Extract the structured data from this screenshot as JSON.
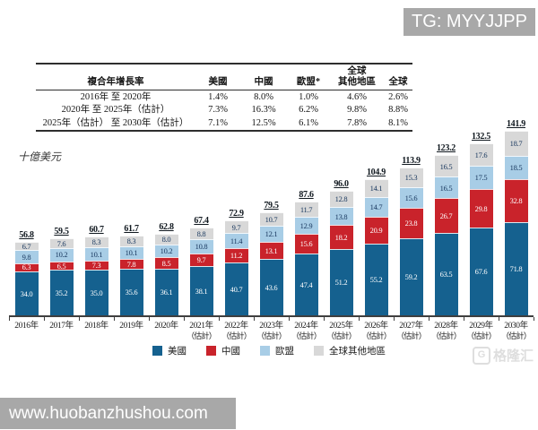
{
  "overlays": {
    "tg_label": "TG: MYYJJPP",
    "bottom_url": "www.huobanzhushou.com",
    "watermark_logo_letter": "G",
    "watermark_text": "格隆汇",
    "watermark_bar_color": "#a8a8a8"
  },
  "table": {
    "row_header": "複合年增長率",
    "col_headers": [
      "美國",
      "中國",
      "歐盟*",
      "全球\n其他地區",
      "全球"
    ],
    "rows": [
      {
        "label": "2016年 至 2020年",
        "values": [
          "1.4%",
          "8.0%",
          "1.0%",
          "4.6%",
          "2.6%"
        ]
      },
      {
        "label": "2020年 至 2025年（估計）",
        "values": [
          "7.3%",
          "16.3%",
          "6.2%",
          "9.8%",
          "8.8%"
        ]
      },
      {
        "label": "2025年（估計） 至 2030年（估計）",
        "values": [
          "7.1%",
          "12.5%",
          "6.1%",
          "7.8%",
          "8.1%"
        ]
      }
    ]
  },
  "chart_data": {
    "type": "bar",
    "stacked": true,
    "unit_label": "十億美元",
    "categories": [
      "2016年",
      "2017年",
      "2018年",
      "2019年",
      "2020年",
      "2021年",
      "2022年",
      "2023年",
      "2024年",
      "2025年",
      "2026年",
      "2027年",
      "2028年",
      "2029年",
      "2030年"
    ],
    "estimated_from_index": 5,
    "estimate_suffix": "（估計）",
    "series": [
      {
        "key": "us",
        "name": "美國",
        "color": "#15618f",
        "label_color": "#ffffff",
        "values": [
          34.0,
          35.2,
          35.0,
          35.6,
          36.1,
          38.1,
          40.7,
          43.6,
          47.4,
          51.2,
          55.2,
          59.2,
          63.5,
          67.6,
          71.8
        ]
      },
      {
        "key": "cn",
        "name": "中國",
        "color": "#c9232b",
        "label_color": "#ffffff",
        "values": [
          6.3,
          6.5,
          7.3,
          7.8,
          8.5,
          9.7,
          11.2,
          13.1,
          15.6,
          18.2,
          20.9,
          23.8,
          26.7,
          29.8,
          32.8
        ]
      },
      {
        "key": "eu",
        "name": "歐盟",
        "color": "#a8cde6",
        "label_color": "#17365d",
        "values": [
          9.8,
          10.2,
          10.1,
          10.1,
          10.2,
          10.8,
          11.4,
          12.1,
          12.9,
          13.8,
          14.7,
          15.6,
          16.5,
          17.5,
          18.5
        ]
      },
      {
        "key": "row",
        "name": "全球其他地區",
        "color": "#d8d8d8",
        "label_color": "#17365d",
        "values": [
          6.7,
          7.6,
          8.3,
          8.3,
          8.0,
          8.8,
          9.7,
          10.7,
          11.7,
          12.8,
          14.1,
          15.3,
          16.5,
          17.6,
          18.7
        ]
      }
    ],
    "totals": [
      56.8,
      59.5,
      60.7,
      61.7,
      62.8,
      67.4,
      72.9,
      79.5,
      87.6,
      96.0,
      104.9,
      113.9,
      123.2,
      132.5,
      141.9
    ],
    "legend_position": "bottom",
    "grid": false,
    "axis_color": "#3f3f3f"
  }
}
